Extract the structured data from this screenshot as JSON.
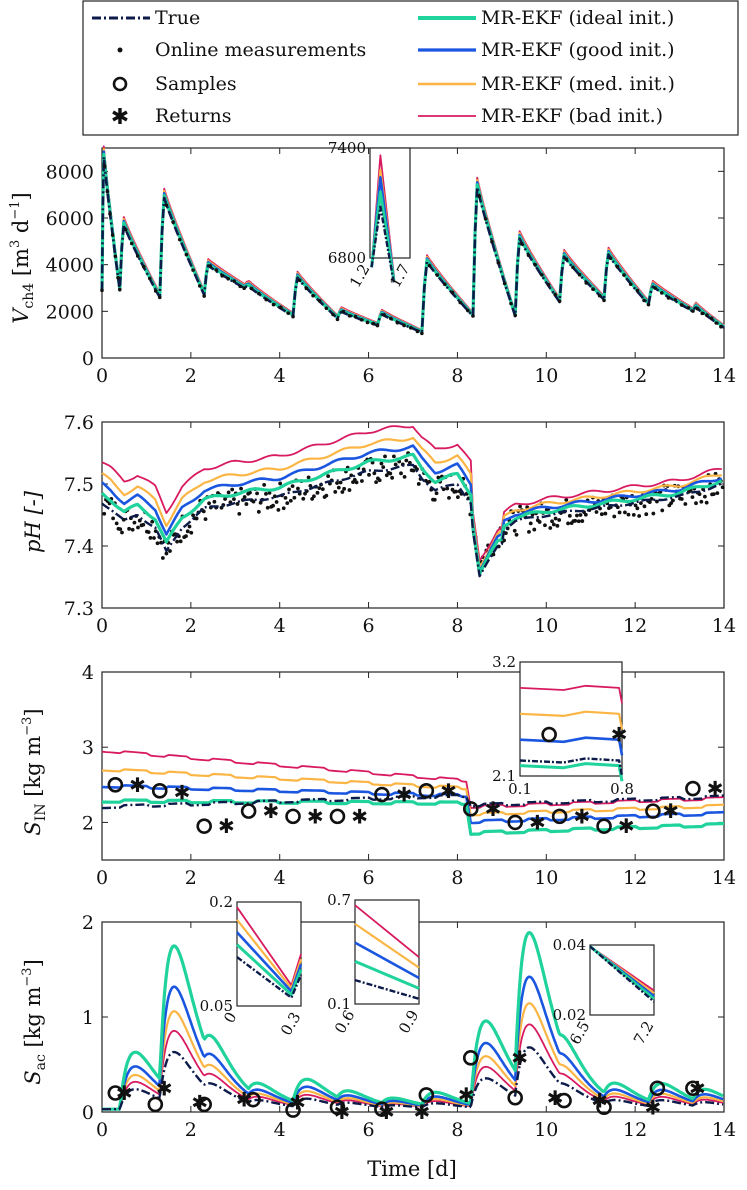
{
  "colors": {
    "true": "#0d1b4a",
    "ideal": "#20d29b",
    "good": "#1a56e0",
    "med": "#fbb544",
    "bad": "#d81b60",
    "marker": "#111111",
    "axis": "#222222"
  },
  "legend": {
    "items": [
      {
        "key": "true",
        "label": "True",
        "style": "dashdot"
      },
      {
        "key": "online",
        "label": "Online measurements",
        "style": "dot"
      },
      {
        "key": "samples",
        "label": "Samples",
        "style": "circle"
      },
      {
        "key": "returns",
        "label": "Returns",
        "style": "star"
      },
      {
        "key": "ideal",
        "label": "MR-EKF (ideal init.)",
        "style": "line"
      },
      {
        "key": "good",
        "label": "MR-EKF (good init.)",
        "style": "line"
      },
      {
        "key": "med",
        "label": "MR-EKF (med. init.)",
        "style": "line"
      },
      {
        "key": "bad",
        "label": "MR-EKF (bad init.)",
        "style": "line"
      }
    ]
  },
  "xlabel": "Time [d]",
  "chart_data": [
    {
      "id": "vch4",
      "type": "line",
      "ylabel_main": "V",
      "ylabel_sub": "ch4",
      "ylabel_units": " [m",
      "ylabel_exp1": "3",
      "ylabel_mid": " d",
      "ylabel_exp2": "−1",
      "ylabel_end": "]",
      "xlim": [
        0,
        14
      ],
      "ylim": [
        0,
        9000
      ],
      "xticks": [
        0,
        2,
        4,
        6,
        8,
        10,
        12,
        14
      ],
      "yticks": [
        0,
        2000,
        4000,
        6000,
        8000
      ],
      "feed_times": [
        0.0,
        0.4,
        1.3,
        2.3,
        3.2,
        4.3,
        5.3,
        6.2,
        7.2,
        8.35,
        9.3,
        10.3,
        11.3,
        12.3,
        13.3
      ],
      "true_peaks": [
        8800,
        5800,
        7000,
        4000,
        3100,
        3500,
        2000,
        1900,
        4200,
        7500,
        5200,
        4400,
        4500,
        3100,
        2200
      ],
      "true_troughs": [
        2900,
        2600,
        2700,
        3000,
        1800,
        1700,
        1400,
        1100,
        1800,
        1800,
        2400,
        2500,
        2300,
        2000,
        1300
      ],
      "inset": {
        "xlim": [
          1.2,
          1.7
        ],
        "ylim": [
          6800,
          7400
        ],
        "xticks": [
          1.2,
          1.7
        ],
        "yticks": [
          6800,
          7400
        ]
      }
    },
    {
      "id": "ph",
      "type": "line+scatter",
      "ylabel": "pH [-]",
      "xlim": [
        0,
        14
      ],
      "ylim": [
        7.3,
        7.6
      ],
      "xticks": [
        0,
        2,
        4,
        6,
        8,
        10,
        12,
        14
      ],
      "yticks": [
        7.3,
        7.4,
        7.5,
        7.6
      ],
      "true_x": [
        0,
        0.2,
        0.5,
        0.8,
        1.2,
        1.45,
        1.8,
        2.3,
        3,
        4,
        5,
        6,
        7,
        7.2,
        7.5,
        8,
        8.3,
        8.5,
        8.9,
        9.3,
        10,
        11,
        12,
        13,
        14
      ],
      "true_y": [
        7.47,
        7.46,
        7.44,
        7.45,
        7.43,
        7.39,
        7.43,
        7.46,
        7.47,
        7.48,
        7.5,
        7.52,
        7.53,
        7.51,
        7.49,
        7.5,
        7.47,
        7.37,
        7.42,
        7.44,
        7.45,
        7.46,
        7.47,
        7.48,
        7.5
      ]
    },
    {
      "id": "sin",
      "type": "line+scatter",
      "ylabel_main": "S",
      "ylabel_sub": "IN",
      "ylabel_units": "  [kg m",
      "ylabel_exp": "−3",
      "ylabel_end": "]",
      "xlim": [
        0,
        14
      ],
      "ylim": [
        1.5,
        4
      ],
      "xticks": [
        0,
        2,
        4,
        6,
        8,
        10,
        12,
        14
      ],
      "yticks": [
        2,
        3,
        4
      ],
      "samples_x": [
        0.3,
        1.3,
        2.3,
        3.3,
        4.3,
        5.3,
        6.3,
        7.3,
        8.3,
        9.3,
        10.3,
        11.3,
        12.4,
        13.3
      ],
      "samples_y": [
        2.5,
        2.42,
        1.95,
        2.15,
        2.08,
        2.08,
        2.37,
        2.42,
        2.18,
        2.0,
        2.08,
        1.95,
        2.15,
        2.45
      ],
      "returns_x": [
        0.8,
        1.8,
        2.8,
        3.8,
        4.8,
        5.8,
        6.8,
        7.8,
        8.8,
        9.8,
        10.8,
        11.8,
        12.8,
        13.8
      ],
      "returns_y": [
        2.5,
        2.4,
        1.95,
        2.15,
        2.08,
        2.08,
        2.37,
        2.42,
        2.18,
        2.0,
        2.08,
        1.95,
        2.15,
        2.45
      ],
      "inset": {
        "xlim": [
          0.1,
          0.8
        ],
        "ylim": [
          2.1,
          3.2
        ],
        "xticks": [
          0.1,
          0.8
        ],
        "yticks": [
          2.1,
          3.2
        ]
      }
    },
    {
      "id": "sac",
      "type": "line+scatter",
      "ylabel_main": "S",
      "ylabel_sub": "ac",
      "ylabel_units": "  [kg m",
      "ylabel_exp": "−3",
      "ylabel_end": "]",
      "xlim": [
        0,
        14
      ],
      "ylim": [
        0,
        2
      ],
      "xticks": [
        0,
        2,
        4,
        6,
        8,
        10,
        12,
        14
      ],
      "yticks": [
        0,
        1,
        2
      ],
      "samples_x": [
        0.3,
        1.2,
        2.3,
        3.4,
        4.3,
        5.3,
        6.3,
        7.3,
        8.3,
        9.3,
        10.4,
        11.3,
        12.5,
        13.3
      ],
      "samples_y": [
        0.2,
        0.08,
        0.08,
        0.13,
        0.02,
        0.05,
        0.03,
        0.18,
        0.57,
        0.15,
        0.12,
        0.05,
        0.25,
        0.25
      ],
      "returns_x": [
        0.5,
        1.4,
        2.2,
        3.2,
        4.4,
        5.4,
        6.4,
        7.2,
        8.2,
        9.4,
        10.2,
        11.2,
        12.4,
        13.4
      ],
      "returns_y": [
        0.2,
        0.25,
        0.1,
        0.13,
        0.1,
        0.0,
        0.0,
        0.0,
        0.18,
        0.57,
        0.15,
        0.12,
        0.05,
        0.25
      ],
      "insets": [
        {
          "xlim": [
            0,
            0.3
          ],
          "ylim": [
            0.05,
            0.2
          ],
          "xticks": [
            0,
            0.3
          ],
          "yticks": [
            0.05,
            0.2
          ]
        },
        {
          "xlim": [
            0.6,
            0.9
          ],
          "ylim": [
            0.1,
            0.7
          ],
          "xticks": [
            0.6,
            0.9
          ],
          "yticks": [
            0.1,
            0.7
          ]
        },
        {
          "xlim": [
            6.5,
            7.2
          ],
          "ylim": [
            0.02,
            0.04
          ],
          "xticks": [
            6.5,
            7.2
          ],
          "yticks": [
            0.02,
            0.04
          ]
        }
      ]
    }
  ]
}
